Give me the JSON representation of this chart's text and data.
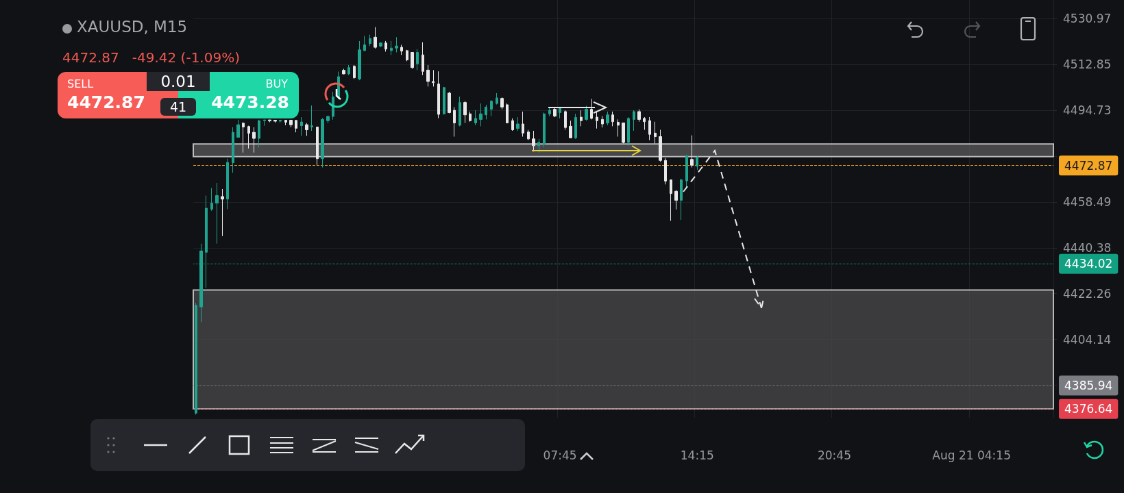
{
  "chart_data": {
    "type": "candlestick",
    "title": "XAUUSD, M15",
    "subtitle": "4472.87   -49.42 (-1.09%)",
    "categories": [
      null,
      null,
      null,
      null,
      null,
      null,
      null,
      null,
      null,
      null,
      null,
      null,
      null,
      null,
      null,
      null,
      null,
      null,
      null,
      null,
      null,
      null,
      null,
      null,
      null,
      null,
      null,
      null,
      null,
      null,
      null,
      null,
      null,
      null,
      null,
      null,
      null,
      null,
      null,
      null,
      null,
      null,
      null,
      null,
      null,
      null,
      null,
      null,
      null,
      null,
      null,
      null,
      null,
      null,
      null,
      null,
      null,
      null,
      null,
      null,
      null,
      null,
      null,
      null,
      null,
      null,
      null,
      null,
      null,
      "07:45",
      null,
      null,
      null,
      null,
      null,
      null,
      null,
      null,
      null,
      null,
      null,
      null,
      null,
      null,
      null,
      null,
      null,
      null,
      null,
      null,
      null,
      null,
      null,
      null,
      null,
      "14:15",
      null,
      null,
      null,
      null,
      null,
      null,
      null,
      null,
      null,
      null,
      null,
      null,
      null,
      null,
      null,
      null,
      null,
      null,
      null,
      null,
      null,
      null,
      null,
      null,
      null,
      "20:45",
      null,
      null,
      null,
      null,
      null,
      null,
      null,
      null,
      null,
      null,
      null,
      null,
      null,
      null,
      null,
      null,
      null,
      null,
      null,
      null,
      null,
      null,
      null,
      null,
      null,
      "Aug 21 04:15",
      null,
      null,
      null,
      null,
      null,
      null,
      null,
      null,
      null,
      null,
      null,
      null,
      null,
      null,
      null
    ],
    "ohlc": [
      [
        4375,
        4418.5,
        4374.4,
        4417.6
      ],
      [
        4417,
        4442,
        4411,
        4439.1
      ],
      [
        4438.6,
        4461,
        4424.5,
        4456
      ],
      [
        4455.6,
        4464,
        4455,
        4458
      ],
      [
        4458,
        4466,
        4442,
        4461
      ],
      [
        4460.6,
        4463.6,
        4445,
        4459.6
      ],
      [
        4459.6,
        4475.6,
        4455.6,
        4474.1
      ],
      [
        4474,
        4488,
        4470,
        4486
      ],
      [
        4484,
        4491,
        4484,
        4489
      ],
      [
        4489.6,
        4490,
        4478,
        4488.1
      ],
      [
        4488.3,
        4488.6,
        4479.6,
        4485.6
      ],
      [
        4486,
        4488,
        4478,
        4483.6
      ],
      [
        4483.6,
        4490.9,
        4480,
        4490.6
      ],
      [
        4490.6,
        4490.9,
        4488.6,
        4490.9
      ],
      [
        4490.9,
        4490.9,
        4490,
        4490.5
      ],
      [
        4490.8,
        4490.9,
        4489.8,
        4490.4
      ],
      [
        4490.4,
        4490.9,
        4489.8,
        4490.8
      ],
      [
        4490.8,
        4490.9,
        4488.8,
        4490
      ],
      [
        4490.8,
        4490.9,
        4488,
        4489
      ],
      [
        4490.7,
        4490.9,
        4486,
        4487.6
      ],
      [
        4488.6,
        4492,
        4484.6,
        4490.1
      ],
      [
        4489,
        4489.6,
        4484.6,
        4487
      ],
      [
        4488.1,
        4496.6,
        4486.6,
        4488.6
      ],
      [
        4488.1,
        4488.1,
        4473.1,
        4475.6
      ],
      [
        4475.6,
        4491.6,
        4472.1,
        4491.1
      ],
      [
        4490.6,
        4492.6,
        4489.6,
        4492.3
      ],
      [
        4492.3,
        4502,
        4491,
        4500
      ],
      [
        4500,
        4510,
        4499,
        4508
      ],
      [
        4510.5,
        4511.1,
        4508.9,
        4509.1
      ],
      [
        4509.1,
        4512.6,
        4508.6,
        4511.6
      ],
      [
        4512.1,
        4512.6,
        4507.1,
        4507.6
      ],
      [
        4507.1,
        4522.1,
        4506.6,
        4518.6
      ],
      [
        4518.3,
        4524.1,
        4518.1,
        4520.6
      ],
      [
        4521.1,
        4524.6,
        4520.1,
        4523.1
      ],
      [
        4523.6,
        4527.6,
        4519.1,
        4519.6
      ],
      [
        4520.1,
        4521.6,
        4519.6,
        4521.3
      ],
      [
        4521.3,
        4522.1,
        4517.9,
        4518.9
      ],
      [
        4518.3,
        4522.1,
        4516.6,
        4519.3
      ],
      [
        4519.3,
        4523.6,
        4517.6,
        4520.1
      ],
      [
        4519.6,
        4520.6,
        4516.6,
        4518.1
      ],
      [
        4518.3,
        4518.6,
        4514.1,
        4514.6
      ],
      [
        4517.6,
        4517.6,
        4511.1,
        4511.6
      ],
      [
        4513.1,
        4518.9,
        4510.6,
        4517.6
      ],
      [
        4516.6,
        4521.6,
        4508.6,
        4510.1
      ],
      [
        4510.6,
        4512.6,
        4504.1,
        4506.1
      ],
      [
        4506.1,
        4510.6,
        4504.1,
        4505.6
      ],
      [
        4505.1,
        4510.1,
        4491.6,
        4493.1
      ],
      [
        4493.3,
        4504,
        4493,
        4503.7
      ],
      [
        4501.5,
        4502,
        4493.5,
        4493.8
      ],
      [
        4494.7,
        4496,
        4484.3,
        4489.7
      ],
      [
        4488.8,
        4500.1,
        4488.4,
        4497.8
      ],
      [
        4497.8,
        4498.3,
        4489.7,
        4492.9
      ],
      [
        4493.3,
        4494.2,
        4490.2,
        4490.6
      ],
      [
        4489.7,
        4494.7,
        4488.8,
        4491.5
      ],
      [
        4491.1,
        4497.4,
        4488.4,
        4493.3
      ],
      [
        4492.9,
        4496.9,
        4491.1,
        4496
      ],
      [
        4495.1,
        4498.7,
        4492.4,
        4498.3
      ],
      [
        4497.4,
        4501.5,
        4497,
        4499.6
      ],
      [
        4499.4,
        4499.8,
        4495.1,
        4496
      ],
      [
        4496.9,
        4497.4,
        4489.7,
        4489.7
      ],
      [
        4490.6,
        4491.5,
        4486.6,
        4487
      ],
      [
        4487.5,
        4492,
        4486.6,
        4489.3
      ],
      [
        4489.3,
        4494.2,
        4484.3,
        4485.7
      ],
      [
        4486.1,
        4487,
        4482.9,
        4483.4
      ],
      [
        4483.4,
        4486.6,
        4478.4,
        4480.7
      ],
      [
        4480.7,
        4483.4,
        4478,
        4482
      ],
      [
        4481.1,
        4493.8,
        4480.2,
        4493.3
      ],
      [
        4493.3,
        4496,
        4492.4,
        4494.7
      ],
      [
        4495.1,
        4496,
        4492,
        4492.4
      ],
      [
        4493.8,
        4496,
        4491.5,
        4495.6
      ],
      [
        4494.2,
        4494.7,
        4487,
        4487.9
      ],
      [
        4488.4,
        4490.6,
        4483.8,
        4483.8
      ],
      [
        4483.8,
        4493.3,
        4483.4,
        4491.9
      ],
      [
        4492,
        4494.7,
        4488.4,
        4490.6
      ],
      [
        4491.1,
        4496.5,
        4490.6,
        4495.1
      ],
      [
        4495.1,
        4499.2,
        4491.1,
        4491.5
      ],
      [
        4492,
        4494.2,
        4487.5,
        4490.6
      ],
      [
        4491.1,
        4492.4,
        4487.9,
        4489.3
      ],
      [
        4489.7,
        4494.2,
        4488.8,
        4492.9
      ],
      [
        4492.9,
        4494.2,
        4488.4,
        4490.2
      ],
      [
        4490,
        4491.1,
        4484.3,
        4488.8
      ],
      [
        4489.7,
        4489.7,
        4481.6,
        4482
      ],
      [
        4482,
        4492,
        4480.7,
        4491.5
      ],
      [
        4491.1,
        4494.7,
        4486.6,
        4494.2
      ],
      [
        4494.2,
        4495.1,
        4490.2,
        4491.1
      ],
      [
        4491.5,
        4492,
        4487,
        4490.2
      ],
      [
        4490.6,
        4492,
        4482.9,
        4485.2
      ],
      [
        4485.7,
        4490.2,
        4481.6,
        4484.3
      ],
      [
        4484.3,
        4487,
        4474.4,
        4474.9
      ],
      [
        4474.9,
        4475.8,
        4465.4,
        4466.7
      ],
      [
        4467.2,
        4467.2,
        4451,
        4461.8
      ],
      [
        4462.7,
        4463.1,
        4455.5,
        4459.1
      ],
      [
        4459.1,
        4467.6,
        4451.4,
        4467.2
      ],
      [
        4466.8,
        4477.1,
        4464,
        4476.7
      ],
      [
        4475.3,
        4484.8,
        4472.1,
        4473
      ],
      [
        4472.6,
        4476.6,
        4471.2,
        4476.2
      ],
      null,
      null,
      null,
      null,
      null,
      null,
      null,
      null,
      null,
      null,
      null,
      null,
      null,
      null,
      null,
      null,
      null,
      null,
      null,
      null,
      null,
      null,
      null,
      null,
      null,
      null,
      null,
      null,
      null,
      null,
      null,
      null,
      null,
      null,
      null,
      null,
      null,
      null,
      null,
      null,
      null,
      null,
      null,
      null,
      null,
      null,
      null,
      null,
      null,
      null,
      null,
      null,
      null,
      null,
      null,
      null,
      null,
      null,
      null,
      null,
      null,
      null,
      null,
      null,
      null,
      null,
      null
    ],
    "colors": [
      "#1fa58f",
      "#1fa58f",
      "#1fa58f",
      "#1fa58f",
      "#1fa58f",
      "#e8e8e8",
      "#1fa58f",
      "#1fa58f",
      "#1fa58f",
      "#e8e8e8",
      "#e8e8e8",
      "#e8e8e8",
      "#1fa58f",
      "#1fa58f",
      "#e8e8e8",
      "#e8e8e8",
      "#1fa58f",
      "#e8e8e8",
      "#e8e8e8",
      "#e8e8e8",
      "#1fa58f",
      "#e8e8e8",
      "#1fa58f",
      "#e8e8e8",
      "#1fa58f",
      "#1fa58f",
      "#1fa58f",
      "#1fa58f",
      "#e8e8e8",
      "#1fa58f",
      "#e8e8e8",
      "#1fa58f",
      "#1fa58f",
      "#1fa58f",
      "#e8e8e8",
      "#1fa58f",
      "#e8e8e8",
      "#1fa58f",
      "#1fa58f",
      "#e8e8e8",
      "#e8e8e8",
      "#e8e8e8",
      "#1fa58f",
      "#e8e8e8",
      "#e8e8e8",
      "#e8e8e8",
      "#e8e8e8",
      "#1fa58f",
      "#e8e8e8",
      "#e8e8e8",
      "#1fa58f",
      "#e8e8e8",
      "#e8e8e8",
      "#1fa58f",
      "#1fa58f",
      "#1fa58f",
      "#1fa58f",
      "#1fa58f",
      "#e8e8e8",
      "#e8e8e8",
      "#e8e8e8",
      "#1fa58f",
      "#e8e8e8",
      "#e8e8e8",
      "#e8e8e8",
      "#1fa58f",
      "#1fa58f",
      "#1fa58f",
      "#e8e8e8",
      "#1fa58f",
      "#e8e8e8",
      "#e8e8e8",
      "#1fa58f",
      "#e8e8e8",
      "#1fa58f",
      "#e8e8e8",
      "#e8e8e8",
      "#e8e8e8",
      "#1fa58f",
      "#e8e8e8",
      "#e8e8e8",
      "#e8e8e8",
      "#1fa58f",
      "#1fa58f",
      "#e8e8e8",
      "#e8e8e8",
      "#e8e8e8",
      "#e8e8e8",
      "#e8e8e8",
      "#e8e8e8",
      "#e8e8e8",
      "#e8e8e8",
      "#1fa58f",
      "#1fa58f",
      "#e8e8e8",
      "#1fa58f",
      null,
      null,
      null,
      null,
      null,
      null,
      null,
      null,
      null,
      null,
      null,
      null,
      null,
      null,
      null,
      null,
      null,
      null,
      null,
      null,
      null,
      null,
      null,
      null,
      null,
      null,
      null,
      null,
      null,
      null,
      null,
      null,
      null,
      null,
      null,
      null,
      null,
      null,
      null,
      null,
      null,
      null,
      null,
      null,
      null,
      null,
      null,
      null,
      null,
      null,
      null,
      null,
      null,
      null,
      null,
      null,
      null,
      null,
      null,
      null,
      null,
      null,
      null,
      null,
      null,
      null,
      null
    ],
    "ylim": [
      4373.2,
      4538.3
    ],
    "yticks": [
      4530.97,
      4512.85,
      4494.73,
      {
        "value": 4476.61,
        "label": null
      },
      4458.49,
      4440.38,
      4422.26,
      4404.14,
      {
        "value": 4386.02,
        "label": null
      }
    ],
    "grid": true,
    "ref_lines": [
      {
        "axis": "y",
        "value": 4472.87,
        "label": "4472.87",
        "color": "#f5a623",
        "line_style": "dashed"
      },
      {
        "axis": "y",
        "value": 4434.02,
        "label": "4434.02",
        "color": "#12a083",
        "line_style": "dotted"
      },
      {
        "axis": "y",
        "value": 4385.94,
        "label": "4385.94",
        "color": "#7b7c82",
        "line_style": "dotted"
      },
      {
        "axis": "y",
        "value": 4376.64,
        "label": "4376.64",
        "color": "#e5404d",
        "line_style": "dotted"
      }
    ],
    "bands": [
      {
        "axis": "y",
        "from": 4376.64,
        "to": 4423.7,
        "color": "#4a4a4c"
      },
      {
        "axis": "y",
        "from": 4476.4,
        "to": 4481.4,
        "color": "#5a5a5c"
      }
    ],
    "annotations": [
      "SELL",
      "4472.87",
      "0.01",
      "41",
      "BUY",
      "4473.28"
    ]
  }
}
